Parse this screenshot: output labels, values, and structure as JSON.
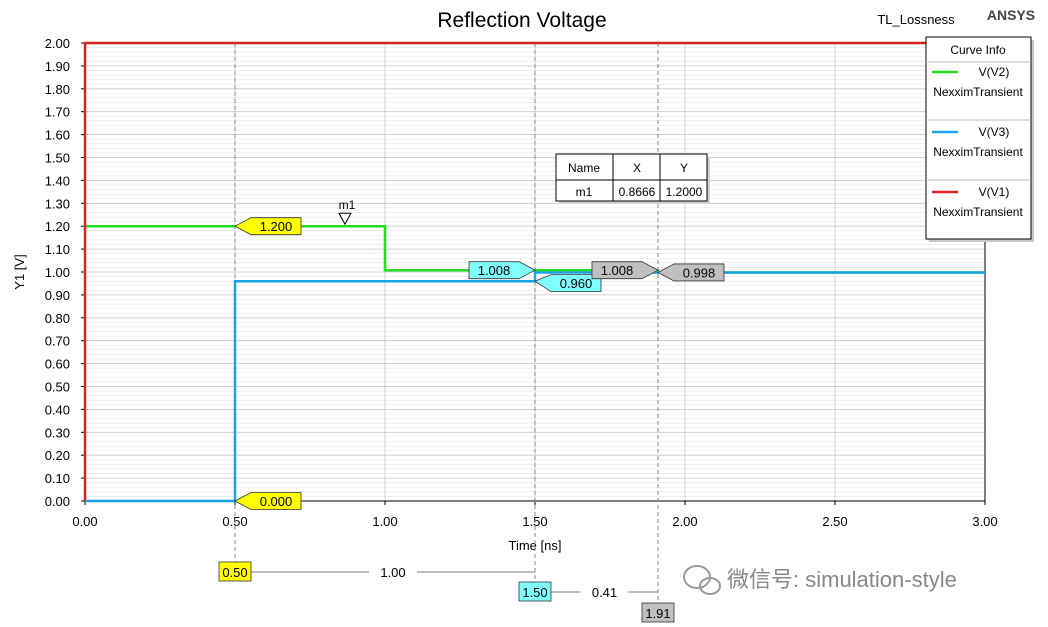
{
  "header": {
    "title": "Reflection Voltage",
    "project": "TL_Lossness",
    "brand": "ANSYS"
  },
  "chart_data": {
    "type": "line",
    "title": "Reflection Voltage",
    "xlabel": "Time [ns]",
    "ylabel": "Y1 [V]",
    "xlim": [
      0,
      3
    ],
    "ylim": [
      0,
      2
    ],
    "x_ticks": [
      "0.00",
      "0.50",
      "1.00",
      "1.50",
      "2.00",
      "2.50",
      "3.00"
    ],
    "y_ticks": [
      "0.00",
      "0.10",
      "0.20",
      "0.30",
      "0.40",
      "0.50",
      "0.60",
      "0.70",
      "0.80",
      "0.90",
      "1.00",
      "1.10",
      "1.20",
      "1.30",
      "1.40",
      "1.50",
      "1.60",
      "1.70",
      "1.80",
      "1.90",
      "2.00"
    ],
    "grid": true,
    "legend_title": "Curve Info",
    "legend_position": "top-right",
    "series": [
      {
        "name": "V(V2)",
        "sub": "NexximTransient",
        "color": "#22dd22",
        "points": [
          [
            0,
            1.2
          ],
          [
            1.0,
            1.2
          ],
          [
            1.0,
            1.008
          ],
          [
            1.5,
            1.008
          ],
          [
            1.5,
            1.008
          ],
          [
            1.91,
            1.008
          ],
          [
            1.91,
            0.998
          ],
          [
            3.0,
            0.998
          ]
        ]
      },
      {
        "name": "V(V3)",
        "sub": "NexximTransient",
        "color": "#1aa3e8",
        "points": [
          [
            0,
            0
          ],
          [
            0.5,
            0
          ],
          [
            0.5,
            0.96
          ],
          [
            1.5,
            0.96
          ],
          [
            1.5,
            0.998
          ],
          [
            3.0,
            0.998
          ]
        ]
      },
      {
        "name": "V(V1)",
        "sub": "NexximTransient",
        "color": "#dd2222",
        "points": [
          [
            0,
            0
          ],
          [
            0,
            2.0
          ],
          [
            3.0,
            2.0
          ]
        ]
      }
    ],
    "marker": {
      "name": "m1",
      "x": 0.8666,
      "y": 1.2
    },
    "marker_table": {
      "headers": [
        "Name",
        "X",
        "Y"
      ],
      "row": [
        "m1",
        "0.8666",
        "1.2000"
      ]
    },
    "data_labels": [
      {
        "text": "1.200",
        "x": 0.5,
        "y": 1.2,
        "color": "#ffff00"
      },
      {
        "text": "0.000",
        "x": 0.5,
        "y": 0.0,
        "color": "#ffff00"
      },
      {
        "text": "1.008",
        "x": 1.5,
        "y": 1.008,
        "color": "#80ffff",
        "side": "left"
      },
      {
        "text": "0.960",
        "x": 1.5,
        "y": 0.96,
        "color": "#80ffff"
      },
      {
        "text": "1.008",
        "x": 1.91,
        "y": 1.008,
        "color": "#c0c0c0",
        "side": "left"
      },
      {
        "text": "0.998",
        "x": 1.91,
        "y": 0.998,
        "color": "#c0c0c0"
      }
    ],
    "cursors": [
      {
        "x": 0.5,
        "label": "0.50",
        "color": "#ffff00"
      },
      {
        "x": 1.5,
        "label": "1.50",
        "color": "#80ffff"
      },
      {
        "x": 1.91,
        "label": "1.91",
        "color": "#c0c0c0"
      }
    ],
    "deltas": [
      {
        "from": 0.5,
        "to": 1.5,
        "label": "1.00"
      },
      {
        "from": 1.5,
        "to": 1.91,
        "label": "0.41"
      }
    ]
  },
  "watermark": "微信号: simulation-style",
  "colors": {
    "grid_major": "#c8c8c8",
    "grid_minor": "#e6e6e6",
    "axis": "#000000"
  }
}
